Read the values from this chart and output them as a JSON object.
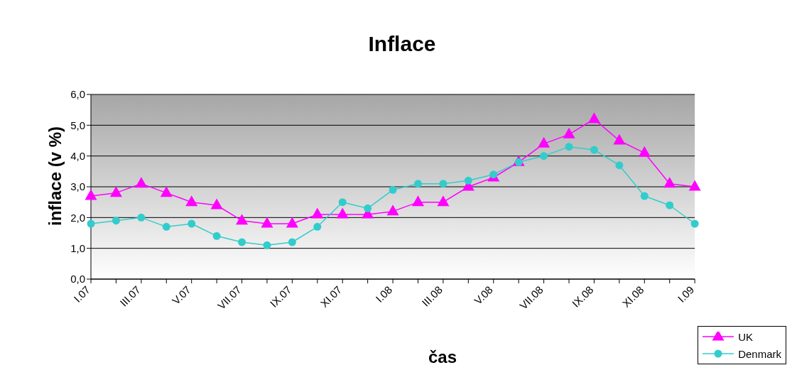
{
  "chart_data": {
    "type": "line",
    "title": "Inflace",
    "xlabel": "čas",
    "ylabel": "inflace (v %)",
    "categories": [
      "I.07",
      null,
      "III.07",
      null,
      "V.07",
      null,
      "VII.07",
      null,
      "IX.07",
      null,
      "XI.07",
      null,
      "I.08",
      null,
      "III.08",
      null,
      "V.08",
      null,
      "VII.08",
      null,
      "IX.08",
      null,
      "XI.08",
      null,
      "I.09"
    ],
    "ylim": [
      0,
      6
    ],
    "yticks": [
      {
        "value": 0,
        "label": "0,0"
      },
      {
        "value": 1,
        "label": "1,0"
      },
      {
        "value": 2,
        "label": "2,0"
      },
      {
        "value": 3,
        "label": "3,0"
      },
      {
        "value": 4,
        "label": "4,0"
      },
      {
        "value": 5,
        "label": "5,0"
      },
      {
        "value": 6,
        "label": "6,0"
      }
    ],
    "grid": "y",
    "legend": "bottom right",
    "series": [
      {
        "name": "UK",
        "color": "#ff00ff",
        "marker": "triangle",
        "values": [
          2.7,
          2.8,
          3.1,
          2.8,
          2.5,
          2.4,
          1.9,
          1.8,
          1.8,
          2.1,
          2.1,
          2.1,
          2.2,
          2.5,
          2.5,
          3.0,
          3.3,
          3.8,
          4.4,
          4.7,
          5.2,
          4.5,
          4.1,
          3.1,
          3.0
        ]
      },
      {
        "name": "Denmark",
        "color": "#33cccc",
        "marker": "circle",
        "values": [
          1.8,
          1.9,
          2.0,
          1.7,
          1.8,
          1.4,
          1.2,
          1.1,
          1.2,
          1.7,
          2.5,
          2.3,
          2.9,
          3.1,
          3.1,
          3.2,
          3.4,
          3.8,
          4.0,
          4.3,
          4.2,
          3.7,
          2.7,
          2.4,
          1.8
        ]
      }
    ]
  }
}
